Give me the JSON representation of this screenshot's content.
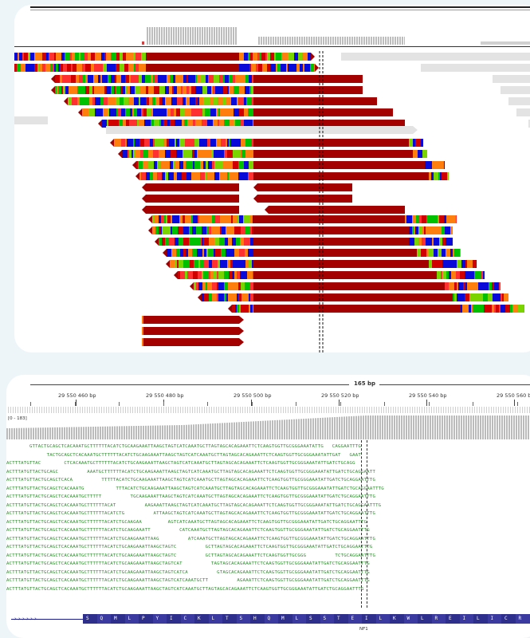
{
  "bottom_panel": {
    "span_label": "165 bp",
    "ruler_ticks": [
      "29 550 460 bp",
      "29 550 480 bp",
      "29 550 500 bp",
      "29 550 520 bp",
      "29 550 540 bp",
      "29 550 560 bp"
    ],
    "coverage_range_label": "[0 - 183]",
    "gene_label": "NF1",
    "amino_acids": [
      "S",
      "Q",
      "M",
      "L",
      "P",
      "Y",
      "I",
      "C",
      "K",
      "L",
      "T",
      "S",
      "H",
      "Q",
      "M",
      "L",
      "S",
      "S",
      "T",
      "E",
      "I",
      "L",
      "K",
      "W",
      "L",
      "R",
      "E",
      "I",
      "L",
      "I",
      "C",
      "R"
    ],
    "read_rows": [
      "        GTTACTGCAGCTCACAAATGCTTTTTTACATCTGCAAGAAATTAAGCTAGTCATCAAATGCTTAGTAGCACAGAAATTCTCAAGTGGTTGCGGGAAATATTG   CAGGAATTTG",
      "              TACTGCAGCTCACAAATGCTTTTTTACATCTGCAAGAAATTAAGCTAGTCATCAAATGCTTAGTAGCACAGAAATTCTCAAGTGGTTGCGGGAAATATTGAT   GAAT",
      "ACTTTATGTTAC        CTCACAAATGCTTTTTTACATCTGCAAGAAATTAAGCTAGTCATCAAATGCTTAGTAGCACAGAAATTCTCAAGTGGTTGCGGGAAATATTGATCTGCAGG",
      "ACTTTATGTTACTGCAGC          AAATGCTTTTTTACATCTGCAAGAAATTAAGCTAGTCATCAAATGCTTAGTAGCACAGAAATTCTCAAGTGGTTGCGGGAAATATTGATCTGCAGGAATT",
      "ACTTTATGTTACTGCAGCTCACA          TTTTTACATCTGCAAGAAATTAAGCTAGTCATCAAATGCTTAGTAGCACAGAAATTCTCAAGTGGTTGCGGGAAATATTGATCTGCAGGAATTTG",
      "ACTTTATGTTACTGCAGCTCACAAATG           TTTACATCTGCAAGAAATTAAGCTAGTCATCAAATGCTTAGTAGCACAGAAATTCTCAAGTGGTTGCGGGAAATATTGATCTGCAGGAATTTG",
      "ACTTTATGTTACTGCAGCTCACAAATGCTTTTT          TGCAAGAAATTAAGCTAGTCATCAAATGCTTAGTAGCACAGAAATTCTCAAGTGGTTGCGGGAAATATTGATCTGCAGGAATTTG",
      "ACTTTATGTTACTGCAGCTCACAAATGCTTTTTTACAT          AAGAAATTAAGCTAGTCATCAAATGCTTAGTAGCACAGAAATTCTCAAGTGGTTGCGGGAAATATTGATCTGCAGGAATTTG",
      "ACTTTATGTTACTGCAGCTCACAAATGCTTTTTTACATCTG          ATTAAGCTAGTCATCAAATGCTTAGTAGCACAGAAATTCTCAAGTGGTTGCGGGAAATATTGATCTGCAGGAATTTG",
      "ACTTTATGTTACTGCAGCTCACAAATGCTTTTTTACATCTGCAAGAA         AGTCATCAAATGCTTAGTAGCACAGAAATTCTCAAGTGGTTGCGGGAAATATTGATCTGCAGGAATTTG",
      "ACTTTATGTTACTGCAGCTCACAAATGCTTTTTTACATCTGCAAGAAATT          CATCAAATGCTTAGTAGCACAGAAATTCTCAAGTGGTTGCGGGAAATATTGATCTGCAGGAATTTG",
      "ACTTTATGTTACTGCAGCTCACAAATGCTTTTTTACATCTGCAAGAAATTAAG          ATCAAATGCTTAGTAGCACAGAAATTCTCAAGTGGTTGCGGGAAATATTGATCTGCAGGAATTTG",
      "ACTTTATGTTACTGCAGCTCACAAATGCTTTTTTACATCTGCAAGAAATTAAGCTAGTC          GCTTAGTAGCACAGAAATTCTCAAGTGGTTGCGGGAAATATTGATCTGCAGGAATTTG",
      "ACTTTATGTTACTGCAGCTCACAAATGCTTTTTTACATCTGCAAGAAATTAAGCTAGTC          GCTTAGTAGCACAGAAATTCTCAAGTGGTTGCGGG          TCTGCAGGAATTTG",
      "ACTTTATGTTACTGCAGCTCACAAATGCTTTTTTACATCTGCAAGAAATTAAGCTAGTCAT          TAGTAGCACAGAAATTCTCAAGTGGTTGCGGGAAATATTGATCTGCAGGAATTTG",
      "ACTTTATGTTACTGCAGCTCACAAATGCTTTTTTACATCTGCAAGAAATTAAGCTAGTCATCA          GTAGCACAGAAATTCTCAAGTGGTTGCGGGAAATATTGATCTGCAGGAATTTG",
      "ACTTTATGTTACTGCAGCTCACAAATGCTTTTTTACATCTGCAAGAAATTAAGCTAGTCATCAAATGCTT          AGAAATTCTCAAGTGGTTGCGGGAAATATTGATCTGCAGGAATTTG",
      "ACTTTATGTTACTGCAGCTCACAAATGCTTTTTTACATCTGCAAGAAATTAAGCTAGTCATCAAATGCTTAGTAGCACAGAAATTCTCAAGTGGTTGCGGGAAATATTGATCTGCAGGAATTTG"
    ]
  }
}
